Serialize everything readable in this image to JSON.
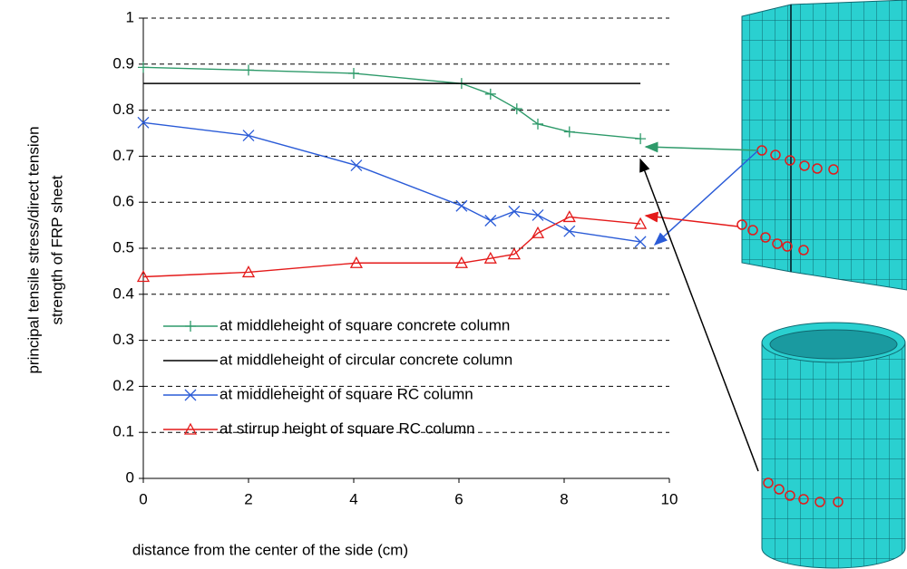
{
  "chart_data": {
    "type": "line",
    "ylabel": [
      "principal tensile stress/direct tension",
      "strength of FRP sheet"
    ],
    "xlabel": "distance from the center of the side (cm)",
    "xlim": [
      0,
      10
    ],
    "xticks": [
      0,
      2,
      4,
      6,
      8,
      10
    ],
    "ylim": [
      0,
      1
    ],
    "yticks": [
      0,
      0.1,
      0.2,
      0.3,
      0.4,
      0.5,
      0.6,
      0.7,
      0.8,
      0.9,
      1
    ],
    "grid": true,
    "legend": "lower left",
    "series": [
      {
        "name": "at middleheight of square concrete column",
        "color": "#2e9a6a",
        "marker": "plus",
        "x": [
          0,
          2,
          4,
          6.05,
          6.6,
          7.1,
          7.5,
          8.1,
          9.45
        ],
        "values": [
          0.893,
          0.887,
          0.88,
          0.858,
          0.835,
          0.803,
          0.77,
          0.753,
          0.738
        ]
      },
      {
        "name": "at middleheight of circular concrete column",
        "color": "#000000",
        "x": [
          0,
          9.45
        ],
        "values": [
          0.858,
          0.858
        ]
      },
      {
        "name": "at middleheight of square RC column",
        "color": "#2a5bd7",
        "marker": "x",
        "x": [
          0,
          2,
          4.05,
          6.05,
          6.6,
          7.05,
          7.5,
          8.1,
          9.45
        ],
        "values": [
          0.773,
          0.745,
          0.68,
          0.592,
          0.56,
          0.58,
          0.572,
          0.537,
          0.514
        ]
      },
      {
        "name": "at stirrup height of square RC column",
        "color": "#e41a1a",
        "marker": "triangle",
        "x": [
          0,
          2,
          4.05,
          6.05,
          6.6,
          7.05,
          7.5,
          8.1,
          9.45
        ],
        "values": [
          0.438,
          0.448,
          0.468,
          0.468,
          0.478,
          0.487,
          0.533,
          0.568,
          0.553
        ]
      }
    ]
  }
}
